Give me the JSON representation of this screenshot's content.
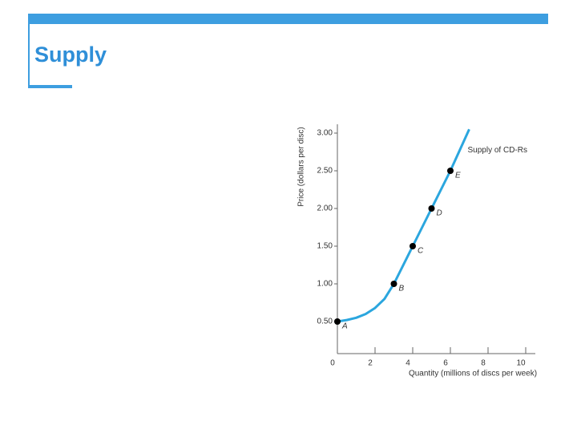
{
  "slide_title": "Supply",
  "chart_data": {
    "type": "line",
    "x_label": "Quantity (millions of discs per week)",
    "y_label": "Price (dollars per disc)",
    "xlim": [
      0,
      10.5
    ],
    "ylim": [
      0,
      3.15
    ],
    "xticks": [
      0,
      2,
      4,
      6,
      8,
      10
    ],
    "yticks": [
      {
        "value": 0.5,
        "label": "0.50"
      },
      {
        "value": 1.0,
        "label": "1.00"
      },
      {
        "value": 1.5,
        "label": "1.50"
      },
      {
        "value": 2.0,
        "label": "2.00"
      },
      {
        "value": 2.5,
        "label": "2.50"
      },
      {
        "value": 3.0,
        "label": "3.00"
      }
    ],
    "series": [
      {
        "name": "Supply of CD-Rs",
        "color": "#2ba6de",
        "x": [
          0,
          0.5,
          1,
          1.5,
          2,
          2.5,
          3,
          4,
          5,
          6,
          7
        ],
        "values": [
          0.5,
          0.52,
          0.55,
          0.6,
          0.68,
          0.8,
          1.0,
          1.5,
          2.0,
          2.5,
          3.05
        ]
      }
    ],
    "points": {
      "labels": [
        "A",
        "B",
        "C",
        "D",
        "E"
      ],
      "x": [
        0,
        3,
        4,
        5,
        6
      ],
      "values": [
        0.5,
        1.0,
        1.5,
        2.0,
        2.5
      ],
      "color": "#000000"
    }
  }
}
